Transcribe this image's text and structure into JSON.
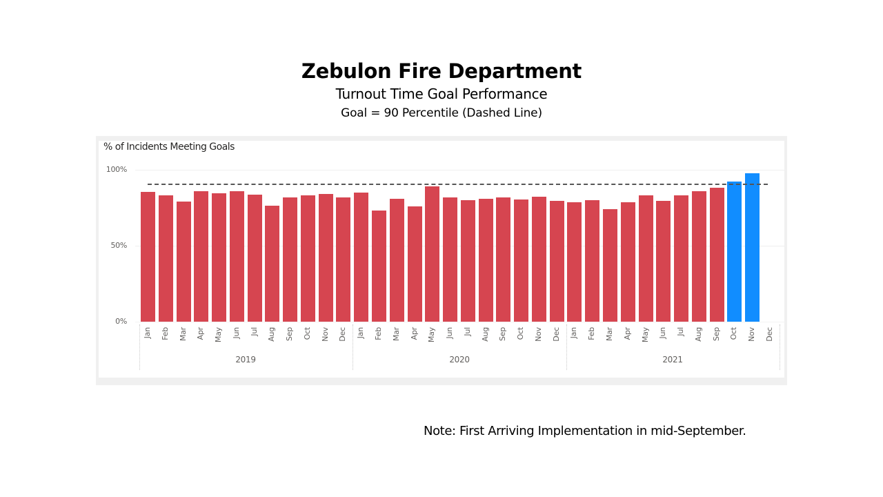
{
  "header": {
    "title": "Zebulon Fire Department",
    "subtitle": "Turnout Time Goal Performance",
    "goal_text": "Goal = 90 Percentile (Dashed Line)"
  },
  "note": "Note: First Arriving Implementation in mid-September.",
  "colors": {
    "below_goal": "#d64550",
    "above_goal": "#118dff",
    "goal_line": "#555555"
  },
  "chart_data": {
    "type": "bar",
    "title": "% of Incidents Meeting Goals",
    "xlabel": "",
    "ylabel": "% of Incidents Meeting Goals",
    "ylim": [
      0,
      100
    ],
    "y_ticks": [
      "0%",
      "50%",
      "100%"
    ],
    "grid": true,
    "legend": null,
    "goal_line": {
      "value": 90,
      "style": "dashed",
      "label": "Goal = 90 Percentile"
    },
    "years": [
      "2019",
      "2020",
      "2021"
    ],
    "categories": [
      "Jan 2019",
      "Feb 2019",
      "Mar 2019",
      "Apr 2019",
      "May 2019",
      "Jun 2019",
      "Jul 2019",
      "Aug 2019",
      "Sep 2019",
      "Oct 2019",
      "Nov 2019",
      "Dec 2019",
      "Jan 2020",
      "Feb 2020",
      "Mar 2020",
      "Apr 2020",
      "May 2020",
      "Jun 2020",
      "Jul 2020",
      "Aug 2020",
      "Sep 2020",
      "Oct 2020",
      "Nov 2020",
      "Dec 2020",
      "Jan 2021",
      "Feb 2021",
      "Mar 2021",
      "Apr 2021",
      "May 2021",
      "Jun 2021",
      "Jul 2021",
      "Aug 2021",
      "Sep 2021",
      "Oct 2021",
      "Nov 2021",
      "Dec 2021"
    ],
    "month_labels": [
      "Jan",
      "Feb",
      "Mar",
      "Apr",
      "May",
      "Jun",
      "Jul",
      "Aug",
      "Sep",
      "Oct",
      "Nov",
      "Dec"
    ],
    "values": [
      85.5,
      83,
      79,
      86,
      84.5,
      86,
      83.5,
      76.5,
      82,
      83.3,
      84,
      82,
      85,
      73,
      81,
      76,
      89,
      82,
      80,
      80.8,
      81.8,
      80.6,
      82.3,
      79.4,
      78.5,
      80,
      74,
      78.8,
      83,
      79.7,
      83,
      86,
      88.2,
      92.4,
      97.6,
      null
    ],
    "bar_colors": [
      "#d64550",
      "#d64550",
      "#d64550",
      "#d64550",
      "#d64550",
      "#d64550",
      "#d64550",
      "#d64550",
      "#d64550",
      "#d64550",
      "#d64550",
      "#d64550",
      "#d64550",
      "#d64550",
      "#d64550",
      "#d64550",
      "#d64550",
      "#d64550",
      "#d64550",
      "#d64550",
      "#d64550",
      "#d64550",
      "#d64550",
      "#d64550",
      "#d64550",
      "#d64550",
      "#d64550",
      "#d64550",
      "#d64550",
      "#d64550",
      "#d64550",
      "#d64550",
      "#d64550",
      "#118dff",
      "#118dff",
      null
    ]
  }
}
